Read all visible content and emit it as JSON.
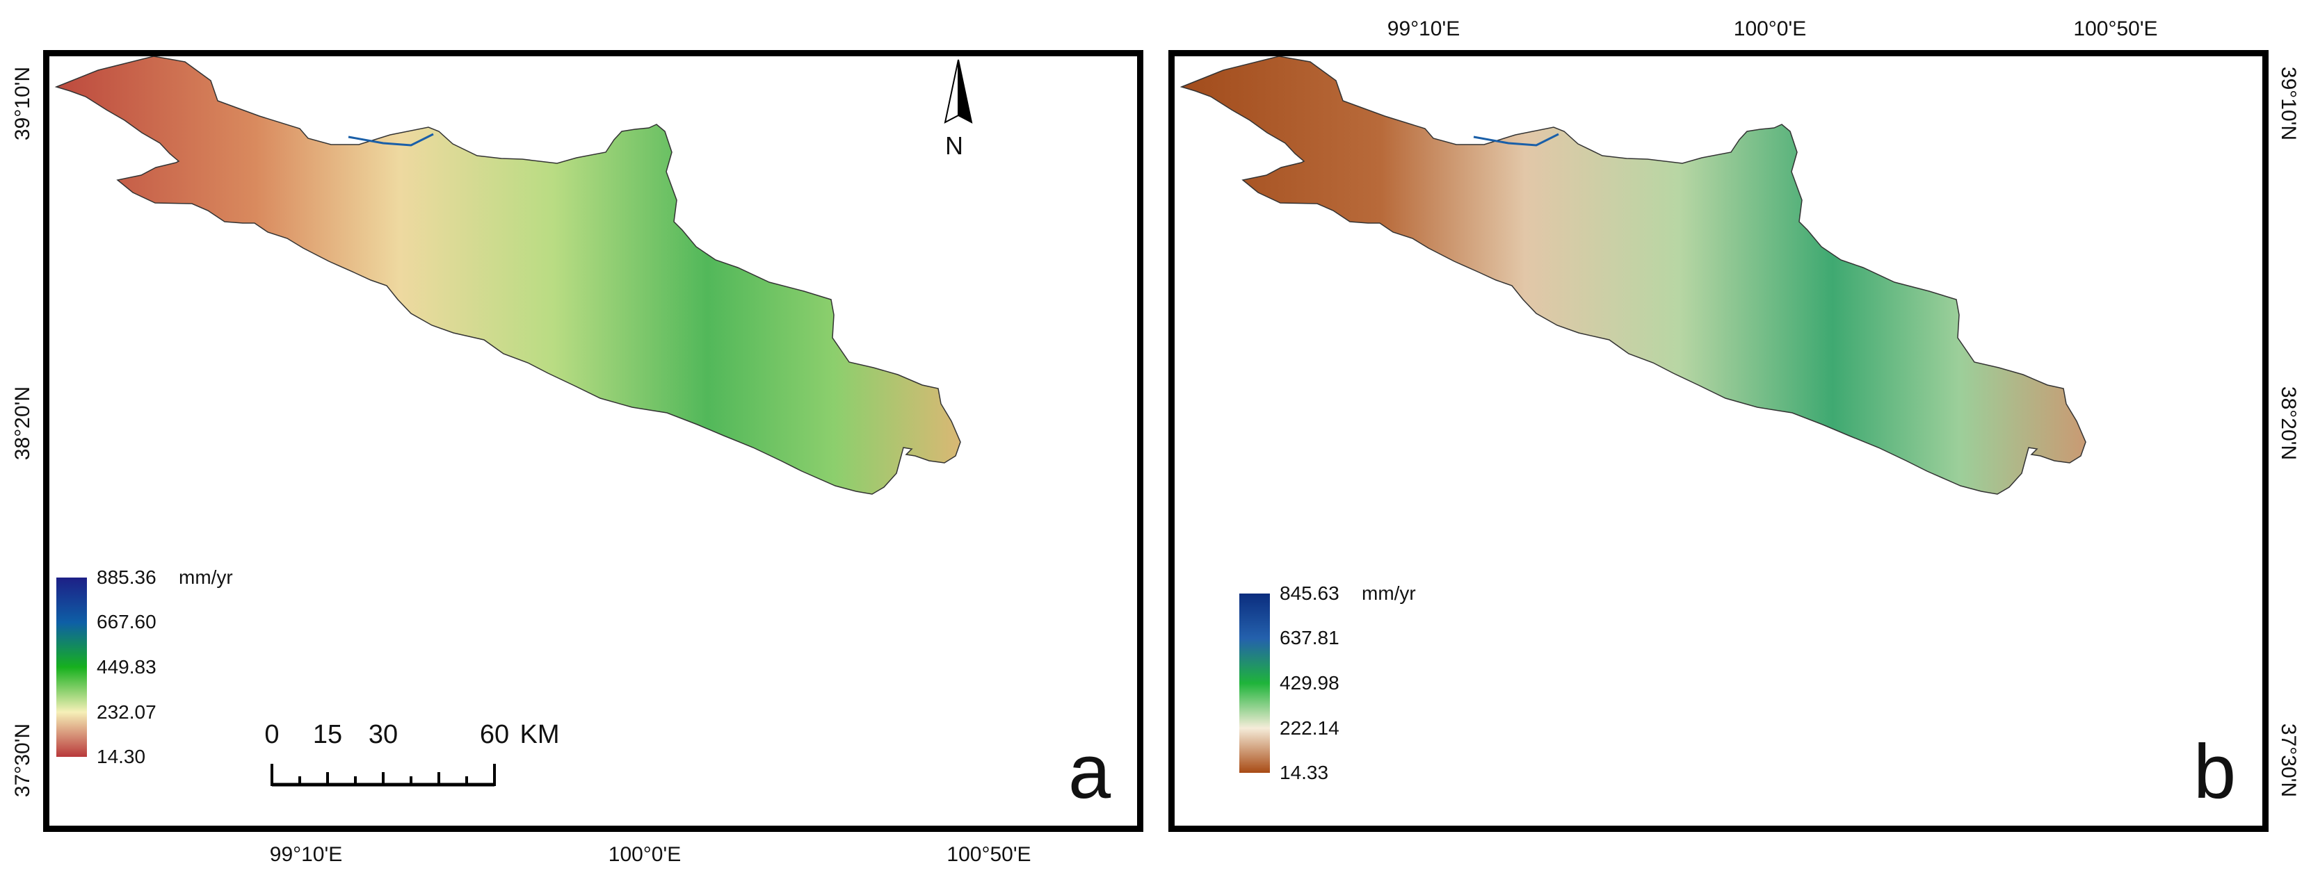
{
  "coordinates": {
    "latitudes": [
      "39°10'N",
      "38°20'N",
      "37°30'N"
    ],
    "longitudes": [
      "99°10'E",
      "100°0'E",
      "100°50'E"
    ]
  },
  "panel_a": {
    "letter": "a",
    "legend": {
      "values": [
        "885.36",
        "667.60",
        "449.83",
        "232.07",
        "14.30"
      ],
      "unit": "mm/yr",
      "colors": [
        "#1d1f86",
        "#0e5fa6",
        "#17b01e",
        "#f6f0b8",
        "#b8383a"
      ]
    },
    "scale_bar": {
      "labels": [
        "0",
        "15",
        "30",
        "60"
      ],
      "unit": "KM",
      "distances_km": [
        0,
        15,
        30,
        60
      ]
    },
    "north_arrow": {
      "letter": "N"
    }
  },
  "panel_b": {
    "letter": "b",
    "legend": {
      "values": [
        "845.63",
        "637.81",
        "429.98",
        "222.14",
        "14.33"
      ],
      "unit": "mm/yr",
      "colors": [
        "#0b2d7e",
        "#2461ad",
        "#1fb43a",
        "#f5ecd9",
        "#a84a14"
      ]
    }
  }
}
